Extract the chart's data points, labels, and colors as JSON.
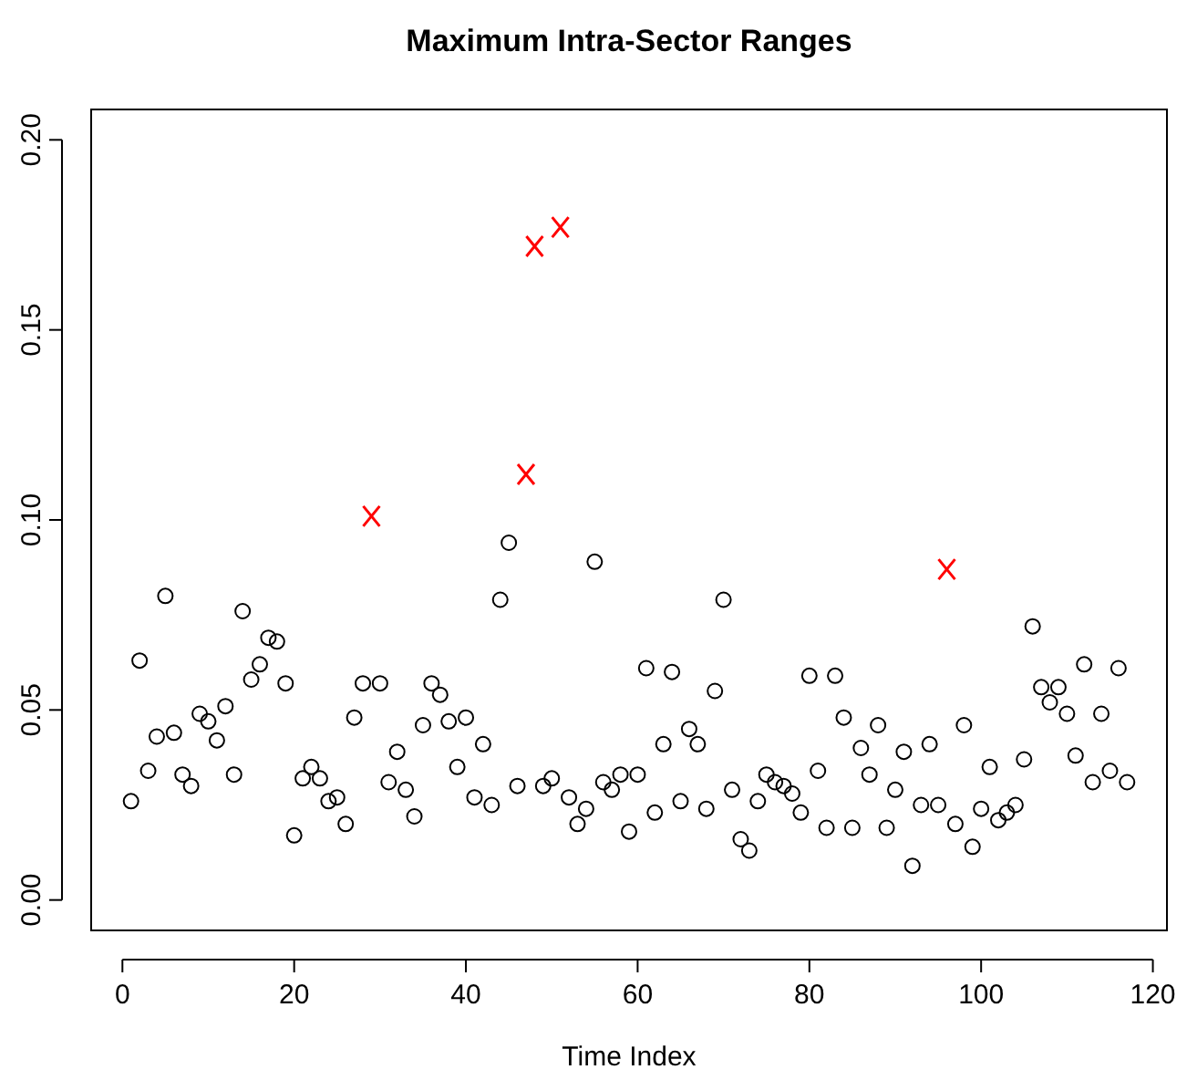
{
  "chart_data": {
    "type": "scatter",
    "title": "Maximum Intra-Sector Ranges",
    "xlabel": "Time Index",
    "xlim": [
      -3.64,
      121.64
    ],
    "xticks": [
      0,
      20,
      40,
      60,
      80,
      100,
      120
    ],
    "ylim": [
      -0.008,
      0.208
    ],
    "yticks": [
      {
        "value": 0,
        "label": "0.00"
      },
      {
        "value": 0.05,
        "label": "0.05"
      },
      {
        "value": 0.1,
        "label": "0.10"
      },
      {
        "value": 0.15,
        "label": "0.15"
      },
      {
        "value": 0.2,
        "label": "0.20"
      }
    ],
    "grid": false,
    "series": [
      {
        "color": "#000000",
        "marker": "circle",
        "x": [
          1,
          2,
          3,
          4,
          5,
          6,
          7,
          8,
          9,
          10,
          11,
          12,
          13,
          14,
          15,
          16,
          17,
          18,
          19,
          20,
          21,
          22,
          23,
          24,
          25,
          26,
          27,
          28,
          30,
          31,
          32,
          33,
          34,
          35,
          36,
          37,
          38,
          39,
          40,
          41,
          42,
          43,
          44,
          45,
          46,
          49,
          50,
          52,
          53,
          54,
          55,
          56,
          57,
          58,
          59,
          60,
          61,
          62,
          63,
          64,
          65,
          66,
          67,
          68,
          69,
          70,
          71,
          72,
          73,
          74,
          75,
          76,
          77,
          78,
          79,
          80,
          81,
          82,
          83,
          84,
          85,
          86,
          87,
          88,
          89,
          90,
          91,
          92,
          93,
          94,
          95,
          97,
          98,
          99,
          100,
          101,
          102,
          103,
          104,
          105,
          106,
          107,
          108,
          109,
          110,
          111,
          112,
          113,
          114,
          115,
          116,
          117
        ],
        "values": [
          0.026,
          0.063,
          0.034,
          0.043,
          0.08,
          0.044,
          0.033,
          0.03,
          0.049,
          0.047,
          0.042,
          0.051,
          0.033,
          0.076,
          0.058,
          0.062,
          0.069,
          0.068,
          0.057,
          0.017,
          0.032,
          0.035,
          0.032,
          0.026,
          0.027,
          0.02,
          0.048,
          0.057,
          0.057,
          0.031,
          0.039,
          0.029,
          0.022,
          0.046,
          0.057,
          0.054,
          0.047,
          0.035,
          0.048,
          0.027,
          0.041,
          0.025,
          0.079,
          0.094,
          0.03,
          0.03,
          0.032,
          0.027,
          0.02,
          0.024,
          0.089,
          0.031,
          0.029,
          0.033,
          0.018,
          0.033,
          0.061,
          0.023,
          0.041,
          0.06,
          0.026,
          0.045,
          0.041,
          0.024,
          0.055,
          0.079,
          0.029,
          0.016,
          0.013,
          0.026,
          0.033,
          0.031,
          0.03,
          0.028,
          0.023,
          0.059,
          0.034,
          0.019,
          0.059,
          0.048,
          0.019,
          0.04,
          0.033,
          0.046,
          0.019,
          0.029,
          0.039,
          0.009,
          0.025,
          0.041,
          0.025,
          0.02,
          0.046,
          0.014,
          0.024,
          0.035,
          0.021,
          0.023,
          0.025,
          0.037,
          0.072,
          0.056,
          0.052,
          0.056,
          0.049,
          0.038,
          0.062,
          0.031,
          0.049,
          0.034,
          0.061,
          0.031
        ]
      },
      {
        "color": "#ff0000",
        "marker": "cross",
        "x": [
          29,
          47,
          48,
          51,
          96
        ],
        "values": [
          0.101,
          0.112,
          0.172,
          0.177,
          0.087
        ]
      }
    ]
  }
}
